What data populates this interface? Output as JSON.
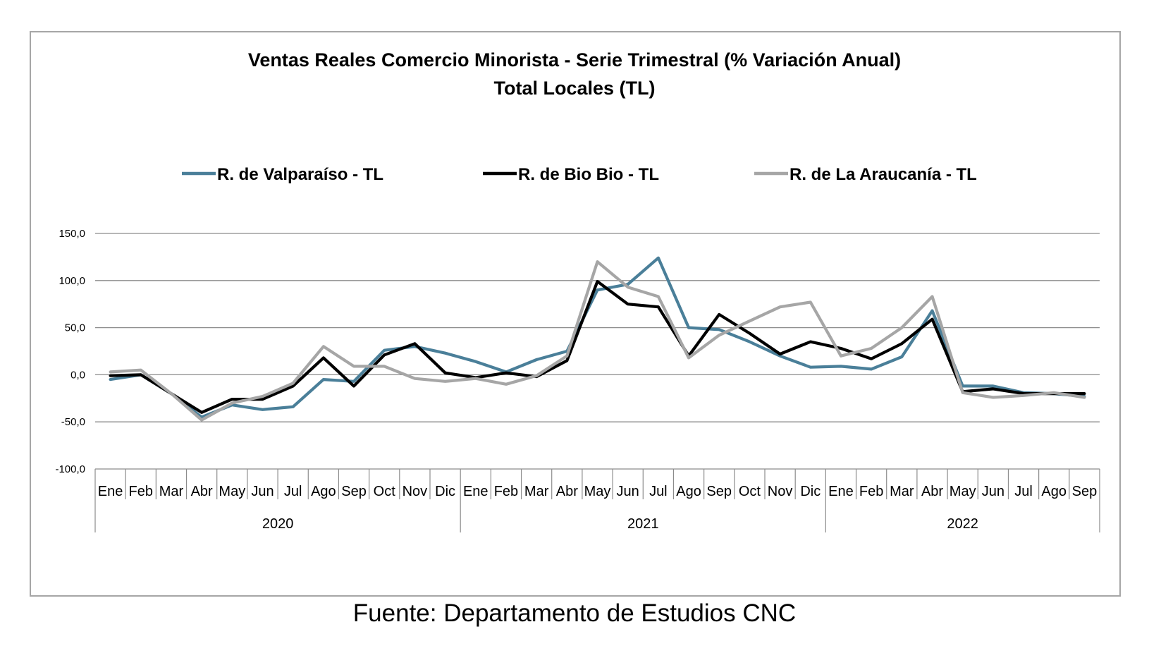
{
  "source": "Fuente: Departamento de Estudios CNC",
  "chart_data": {
    "type": "line",
    "title": "Ventas Reales Comercio Minorista - Serie Trimestral (% Variación Anual)",
    "subtitle": "Total Locales (TL)",
    "ylim": [
      -100,
      150
    ],
    "yticks": [
      "150,0",
      "100,0",
      "50,0",
      "0,0",
      "-50,0",
      "-100,0"
    ],
    "ytick_values": [
      150,
      100,
      50,
      0,
      -50,
      -100
    ],
    "grid": true,
    "legend_position": "top",
    "categories": [
      "Ene",
      "Feb",
      "Mar",
      "Abr",
      "May",
      "Jun",
      "Jul",
      "Ago",
      "Sep",
      "Oct",
      "Nov",
      "Dic",
      "Ene",
      "Feb",
      "Mar",
      "Abr",
      "May",
      "Jun",
      "Jul",
      "Ago",
      "Sep",
      "Oct",
      "Nov",
      "Dic",
      "Ene",
      "Feb",
      "Mar",
      "Abr",
      "May",
      "Jun",
      "Jul",
      "Ago",
      "Sep"
    ],
    "years": [
      {
        "label": "2020",
        "span": 12
      },
      {
        "label": "2021",
        "span": 12
      },
      {
        "label": "2022",
        "span": 9
      }
    ],
    "series": [
      {
        "name": "R. de Valparaíso - TL",
        "color": "#4a7f99",
        "values": [
          -5,
          0,
          -20,
          -45,
          -32,
          -37,
          -34,
          -5,
          -7,
          26,
          30,
          23,
          14,
          3,
          16,
          25,
          90,
          96,
          124,
          50,
          48,
          35,
          20,
          8,
          9,
          6,
          19,
          68,
          -12,
          -12,
          -19,
          -20,
          -23
        ]
      },
      {
        "name": "R. de Bio Bio - TL",
        "color": "#000000",
        "values": [
          -1,
          0,
          -20,
          -40,
          -26,
          -26,
          -12,
          18,
          -12,
          21,
          33,
          2,
          -3,
          2,
          -2,
          15,
          99,
          75,
          72,
          20,
          64,
          44,
          22,
          35,
          28,
          17,
          33,
          59,
          -18,
          -15,
          -20,
          -20,
          -20
        ]
      },
      {
        "name": "R. de La Araucanía - TL",
        "color": "#a6a6a6",
        "values": [
          3,
          5,
          -20,
          -48,
          -30,
          -23,
          -9,
          30,
          9,
          9,
          -4,
          -7,
          -4,
          -10,
          -1,
          20,
          120,
          93,
          83,
          18,
          42,
          57,
          72,
          77,
          20,
          28,
          50,
          83,
          -19,
          -24,
          -22,
          -19,
          -24
        ]
      }
    ]
  }
}
